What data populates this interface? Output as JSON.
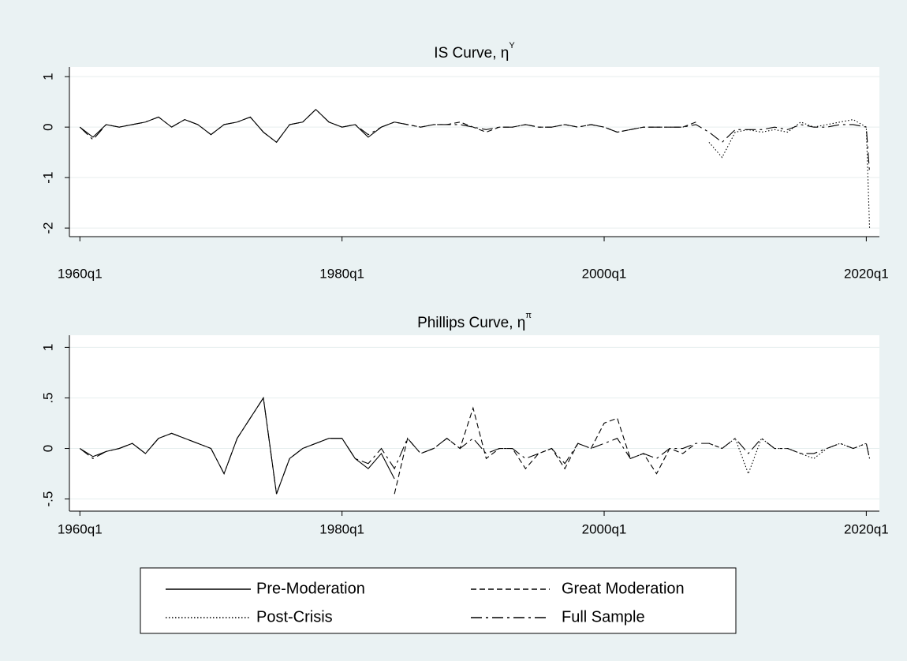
{
  "chart_data": [
    {
      "type": "line",
      "title": "IS Curve, η",
      "title_superscript": "Y",
      "x": [
        1960,
        1961,
        1962,
        1963,
        1964,
        1965,
        1966,
        1967,
        1968,
        1969,
        1970,
        1971,
        1972,
        1973,
        1974,
        1975,
        1976,
        1977,
        1978,
        1979,
        1980,
        1981,
        1982,
        1983,
        1984,
        1985,
        1986,
        1987,
        1988,
        1989,
        1990,
        1991,
        1992,
        1993,
        1994,
        1995,
        1996,
        1997,
        1998,
        1999,
        2000,
        2001,
        2002,
        2003,
        2004,
        2005,
        2006,
        2007,
        2008,
        2009,
        2010,
        2011,
        2012,
        2013,
        2014,
        2015,
        2016,
        2017,
        2018,
        2019,
        2020,
        2020.25
      ],
      "xlim": [
        1959.2,
        2021
      ],
      "xticks": [
        {
          "value": 1960,
          "label": "1960q1"
        },
        {
          "value": 1980,
          "label": "1980q1"
        },
        {
          "value": 2000,
          "label": "2000q1"
        },
        {
          "value": 2020,
          "label": "2020q1"
        }
      ],
      "ylim": [
        -2.17,
        1.19
      ],
      "yticks": [
        -2,
        -1,
        0,
        1
      ],
      "grid": true,
      "series": [
        {
          "name": "Pre-Moderation",
          "color": "#000000",
          "dash": "solid",
          "values": [
            0,
            -0.2,
            0.05,
            0.0,
            0.05,
            0.1,
            0.2,
            0.0,
            0.15,
            0.05,
            -0.15,
            0.05,
            0.1,
            0.2,
            -0.1,
            -0.3,
            0.05,
            0.1,
            0.35,
            0.1,
            0.0,
            0.05,
            -0.2,
            0.0,
            0.1,
            null,
            null,
            null,
            null,
            null,
            null,
            null,
            null,
            null,
            null,
            null,
            null,
            null,
            null,
            null,
            null,
            null,
            null,
            null,
            null,
            null,
            null,
            null,
            null,
            null,
            null,
            null,
            null,
            null,
            null,
            null,
            null,
            null,
            null,
            null,
            null,
            null
          ]
        },
        {
          "name": "Great Moderation",
          "color": "#000000",
          "dash": "dash",
          "values": [
            null,
            null,
            null,
            null,
            null,
            null,
            null,
            null,
            null,
            null,
            null,
            null,
            null,
            null,
            null,
            null,
            null,
            null,
            null,
            null,
            null,
            null,
            null,
            null,
            0.1,
            0.05,
            0.0,
            0.05,
            0.05,
            0.1,
            0.0,
            -0.1,
            0.0,
            0.0,
            0.05,
            0.0,
            0.0,
            0.05,
            0.0,
            0.05,
            0.0,
            -0.1,
            -0.05,
            0.0,
            0.0,
            0.0,
            0.0,
            0.1,
            null,
            null,
            null,
            null,
            null,
            null,
            null,
            null,
            null,
            null,
            null,
            null,
            null,
            null
          ]
        },
        {
          "name": "Post-Crisis",
          "color": "#000000",
          "dash": "dot",
          "values": [
            null,
            null,
            null,
            null,
            null,
            null,
            null,
            null,
            null,
            null,
            null,
            null,
            null,
            null,
            null,
            null,
            null,
            null,
            null,
            null,
            null,
            null,
            null,
            null,
            null,
            null,
            null,
            null,
            null,
            null,
            null,
            null,
            null,
            null,
            null,
            null,
            null,
            null,
            null,
            null,
            null,
            null,
            null,
            null,
            null,
            null,
            null,
            null,
            -0.3,
            -0.6,
            -0.1,
            -0.05,
            -0.1,
            -0.05,
            -0.1,
            0.1,
            0.0,
            0.05,
            0.1,
            0.15,
            0.0,
            -2.0
          ]
        },
        {
          "name": "Full Sample",
          "color": "#000000",
          "dash": "longdash",
          "values": [
            0,
            -0.25,
            0.05,
            0.0,
            0.05,
            0.1,
            0.2,
            0.0,
            0.15,
            0.05,
            -0.15,
            0.05,
            0.1,
            0.2,
            -0.1,
            -0.3,
            0.05,
            0.1,
            0.35,
            0.1,
            0.0,
            0.05,
            -0.15,
            0.0,
            0.1,
            0.05,
            0.0,
            0.05,
            0.05,
            0.05,
            0.0,
            -0.05,
            0.0,
            0.0,
            0.05,
            0.0,
            0.0,
            0.05,
            0.0,
            0.05,
            0.0,
            -0.1,
            -0.05,
            0.0,
            0.0,
            0.0,
            0.0,
            0.05,
            -0.1,
            -0.3,
            -0.05,
            -0.05,
            -0.05,
            0.0,
            -0.05,
            0.05,
            0.0,
            0.0,
            0.05,
            0.05,
            0.0,
            -0.9
          ]
        }
      ]
    },
    {
      "type": "line",
      "title": "Phillips Curve, η",
      "title_superscript": "π",
      "x": [
        1960,
        1961,
        1962,
        1963,
        1964,
        1965,
        1966,
        1967,
        1968,
        1969,
        1970,
        1971,
        1972,
        1973,
        1974,
        1975,
        1976,
        1977,
        1978,
        1979,
        1980,
        1981,
        1982,
        1983,
        1984,
        1985,
        1986,
        1987,
        1988,
        1989,
        1990,
        1991,
        1992,
        1993,
        1994,
        1995,
        1996,
        1997,
        1998,
        1999,
        2000,
        2001,
        2002,
        2003,
        2004,
        2005,
        2006,
        2007,
        2008,
        2009,
        2010,
        2011,
        2012,
        2013,
        2014,
        2015,
        2016,
        2017,
        2018,
        2019,
        2020,
        2020.25
      ],
      "xlim": [
        1959.2,
        2021
      ],
      "xticks": [
        {
          "value": 1960,
          "label": "1960q1"
        },
        {
          "value": 1980,
          "label": "1980q1"
        },
        {
          "value": 2000,
          "label": "2000q1"
        },
        {
          "value": 2020,
          "label": "2020q1"
        }
      ],
      "ylim": [
        -0.62,
        1.12
      ],
      "yticks": [
        {
          "value": -0.5,
          "label": "-.5"
        },
        0,
        {
          "value": 0.5,
          "label": ".5"
        },
        1
      ],
      "grid": true,
      "series": [
        {
          "name": "Pre-Moderation",
          "color": "#000000",
          "dash": "solid",
          "values": [
            0,
            -0.08,
            -0.03,
            0.0,
            0.05,
            -0.05,
            0.1,
            0.15,
            0.1,
            0.05,
            0.0,
            -0.25,
            0.1,
            0.3,
            0.5,
            -0.45,
            -0.1,
            0.0,
            0.05,
            0.1,
            0.1,
            -0.1,
            -0.2,
            -0.05,
            -0.3,
            null,
            null,
            null,
            null,
            null,
            null,
            null,
            null,
            null,
            null,
            null,
            null,
            null,
            null,
            null,
            null,
            null,
            null,
            null,
            null,
            null,
            null,
            null,
            null,
            null,
            null,
            null,
            null,
            null,
            null,
            null,
            null,
            null,
            null,
            null,
            null,
            null
          ]
        },
        {
          "name": "Great Moderation",
          "color": "#000000",
          "dash": "dash",
          "values": [
            null,
            null,
            null,
            null,
            null,
            null,
            null,
            null,
            null,
            null,
            null,
            null,
            null,
            null,
            null,
            null,
            null,
            null,
            null,
            null,
            null,
            null,
            null,
            null,
            -0.45,
            0.1,
            -0.05,
            0.0,
            0.1,
            0.0,
            0.4,
            -0.1,
            0.0,
            0.0,
            -0.2,
            -0.05,
            0.0,
            -0.2,
            0.05,
            0.0,
            0.25,
            0.3,
            -0.1,
            -0.05,
            -0.25,
            0.0,
            -0.05,
            0.05,
            null,
            null,
            null,
            null,
            null,
            null,
            null,
            null,
            null,
            null,
            null,
            null,
            null,
            null
          ]
        },
        {
          "name": "Post-Crisis",
          "color": "#000000",
          "dash": "dot",
          "values": [
            null,
            null,
            null,
            null,
            null,
            null,
            null,
            null,
            null,
            null,
            null,
            null,
            null,
            null,
            null,
            null,
            null,
            null,
            null,
            null,
            null,
            null,
            null,
            null,
            null,
            null,
            null,
            null,
            null,
            null,
            null,
            null,
            null,
            null,
            null,
            null,
            null,
            null,
            null,
            null,
            null,
            null,
            null,
            null,
            null,
            null,
            null,
            null,
            0.05,
            0.0,
            0.1,
            -0.25,
            0.1,
            0.0,
            0.0,
            -0.05,
            -0.1,
            0.0,
            0.05,
            0.0,
            0.05,
            -0.1
          ]
        },
        {
          "name": "Full Sample",
          "color": "#000000",
          "dash": "longdash",
          "values": [
            0,
            -0.1,
            -0.03,
            0.0,
            0.05,
            -0.05,
            0.1,
            0.15,
            0.1,
            0.05,
            0.0,
            -0.25,
            0.1,
            0.3,
            0.5,
            -0.45,
            -0.1,
            0.0,
            0.05,
            0.1,
            0.1,
            -0.1,
            -0.15,
            0.0,
            -0.2,
            0.1,
            -0.05,
            0.0,
            0.1,
            0.0,
            0.1,
            -0.05,
            0.0,
            0.0,
            -0.1,
            -0.05,
            0.0,
            -0.15,
            0.05,
            0.0,
            0.05,
            0.1,
            -0.1,
            -0.05,
            -0.1,
            0.0,
            0.0,
            0.05,
            0.05,
            0.0,
            0.1,
            -0.05,
            0.1,
            0.0,
            0.0,
            -0.05,
            -0.05,
            0.0,
            0.05,
            0.0,
            0.05,
            -0.1
          ]
        }
      ]
    }
  ]
}
